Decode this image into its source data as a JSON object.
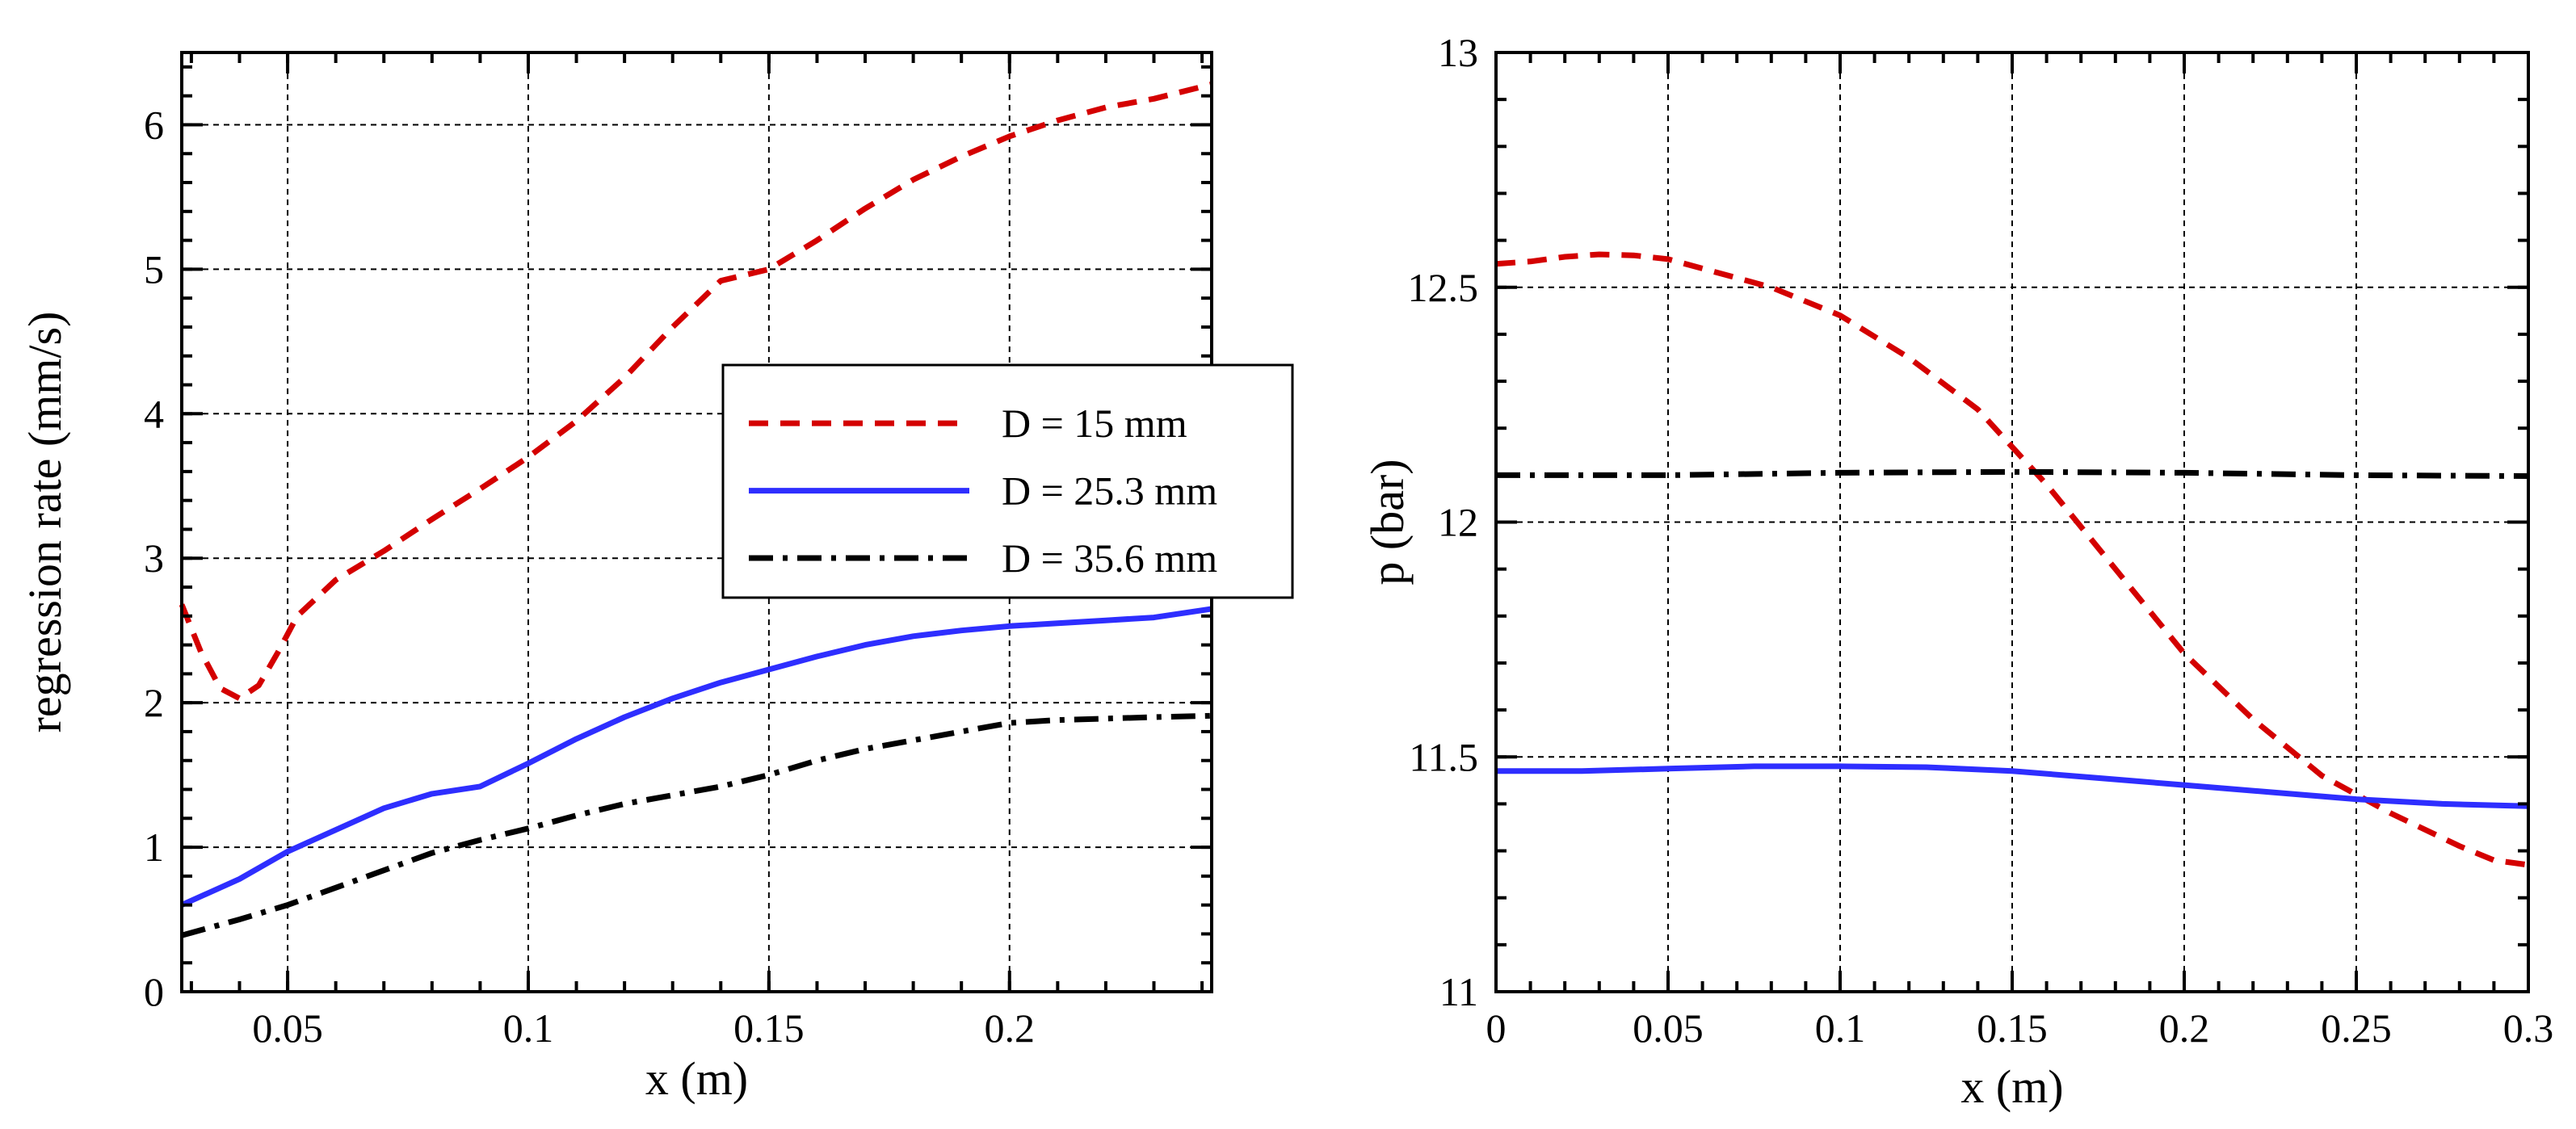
{
  "chart_data": [
    {
      "type": "line",
      "title": "",
      "xlabel": "x (m)",
      "ylabel": "regression rate (mm/s)",
      "xlim": [
        0.028,
        0.242
      ],
      "ylim": [
        0,
        6.5
      ],
      "grid": true,
      "legend": "center-right",
      "xticks": [
        0.05,
        0.1,
        0.15,
        0.2
      ],
      "xtick_labels": [
        "0.05",
        "0.1",
        "0.15",
        "0.2"
      ],
      "yticks": [
        0,
        1,
        2,
        3,
        4,
        5,
        6
      ],
      "ytick_labels": [
        "0",
        "1",
        "2",
        "3",
        "4",
        "5",
        "6"
      ],
      "series": [
        {
          "name": "D = 15 mm",
          "color": "#d40000",
          "style": "dashed",
          "x": [
            0.028,
            0.032,
            0.036,
            0.04,
            0.044,
            0.048,
            0.052,
            0.06,
            0.07,
            0.08,
            0.09,
            0.1,
            0.11,
            0.12,
            0.13,
            0.14,
            0.15,
            0.16,
            0.17,
            0.18,
            0.19,
            0.2,
            0.21,
            0.22,
            0.23,
            0.242
          ],
          "y": [
            2.68,
            2.35,
            2.1,
            2.03,
            2.12,
            2.35,
            2.6,
            2.85,
            3.05,
            3.27,
            3.48,
            3.7,
            3.95,
            4.25,
            4.6,
            4.92,
            5.0,
            5.2,
            5.42,
            5.62,
            5.78,
            5.92,
            6.03,
            6.12,
            6.18,
            6.28
          ]
        },
        {
          "name": "D = 25.3 mm",
          "color": "#2e2eff",
          "style": "solid",
          "x": [
            0.028,
            0.04,
            0.05,
            0.06,
            0.07,
            0.08,
            0.09,
            0.1,
            0.11,
            0.12,
            0.13,
            0.14,
            0.15,
            0.16,
            0.17,
            0.18,
            0.19,
            0.2,
            0.21,
            0.22,
            0.23,
            0.242
          ],
          "y": [
            0.6,
            0.78,
            0.97,
            1.12,
            1.27,
            1.37,
            1.42,
            1.58,
            1.75,
            1.9,
            2.03,
            2.14,
            2.23,
            2.32,
            2.4,
            2.46,
            2.5,
            2.53,
            2.55,
            2.57,
            2.59,
            2.65
          ]
        },
        {
          "name": "D = 35.6 mm",
          "color": "#000000",
          "style": "dashdot",
          "x": [
            0.028,
            0.04,
            0.05,
            0.06,
            0.07,
            0.08,
            0.09,
            0.1,
            0.11,
            0.12,
            0.13,
            0.14,
            0.15,
            0.16,
            0.17,
            0.18,
            0.19,
            0.2,
            0.21,
            0.22,
            0.23,
            0.242
          ],
          "y": [
            0.39,
            0.5,
            0.6,
            0.72,
            0.84,
            0.96,
            1.05,
            1.13,
            1.22,
            1.3,
            1.36,
            1.42,
            1.5,
            1.6,
            1.68,
            1.74,
            1.8,
            1.86,
            1.88,
            1.89,
            1.9,
            1.91
          ]
        }
      ]
    },
    {
      "type": "line",
      "title": "",
      "xlabel": "x (m)",
      "ylabel": "p (bar)",
      "xlim": [
        0,
        0.3
      ],
      "ylim": [
        11,
        13
      ],
      "grid": true,
      "legend": "none",
      "xticks": [
        0,
        0.05,
        0.1,
        0.15,
        0.2,
        0.25,
        0.3
      ],
      "xtick_labels": [
        "0",
        "0.05",
        "0.1",
        "0.15",
        "0.2",
        "0.25",
        "0.3"
      ],
      "yticks": [
        11,
        11.5,
        12,
        12.5,
        13
      ],
      "ytick_labels": [
        "11",
        "11.5",
        "12",
        "12.5",
        "13"
      ],
      "series": [
        {
          "name": "D = 15 mm",
          "color": "#d40000",
          "style": "dashed",
          "x": [
            0,
            0.01,
            0.02,
            0.03,
            0.04,
            0.05,
            0.06,
            0.08,
            0.1,
            0.12,
            0.14,
            0.16,
            0.18,
            0.2,
            0.22,
            0.24,
            0.26,
            0.28,
            0.29,
            0.3
          ],
          "y": [
            12.55,
            12.555,
            12.565,
            12.57,
            12.568,
            12.56,
            12.54,
            12.5,
            12.44,
            12.35,
            12.24,
            12.08,
            11.9,
            11.72,
            11.58,
            11.46,
            11.38,
            11.31,
            11.28,
            11.27
          ]
        },
        {
          "name": "D = 25.3 mm",
          "color": "#2e2eff",
          "style": "solid",
          "x": [
            0,
            0.025,
            0.05,
            0.075,
            0.1,
            0.125,
            0.15,
            0.175,
            0.2,
            0.225,
            0.25,
            0.275,
            0.3
          ],
          "y": [
            11.47,
            11.47,
            11.475,
            11.48,
            11.48,
            11.478,
            11.47,
            11.455,
            11.44,
            11.425,
            11.41,
            11.4,
            11.395
          ]
        },
        {
          "name": "D = 35.6 mm",
          "color": "#000000",
          "style": "dashdot",
          "x": [
            0,
            0.05,
            0.1,
            0.15,
            0.2,
            0.25,
            0.3
          ],
          "y": [
            12.1,
            12.1,
            12.105,
            12.107,
            12.105,
            12.1,
            12.098
          ]
        }
      ]
    }
  ]
}
